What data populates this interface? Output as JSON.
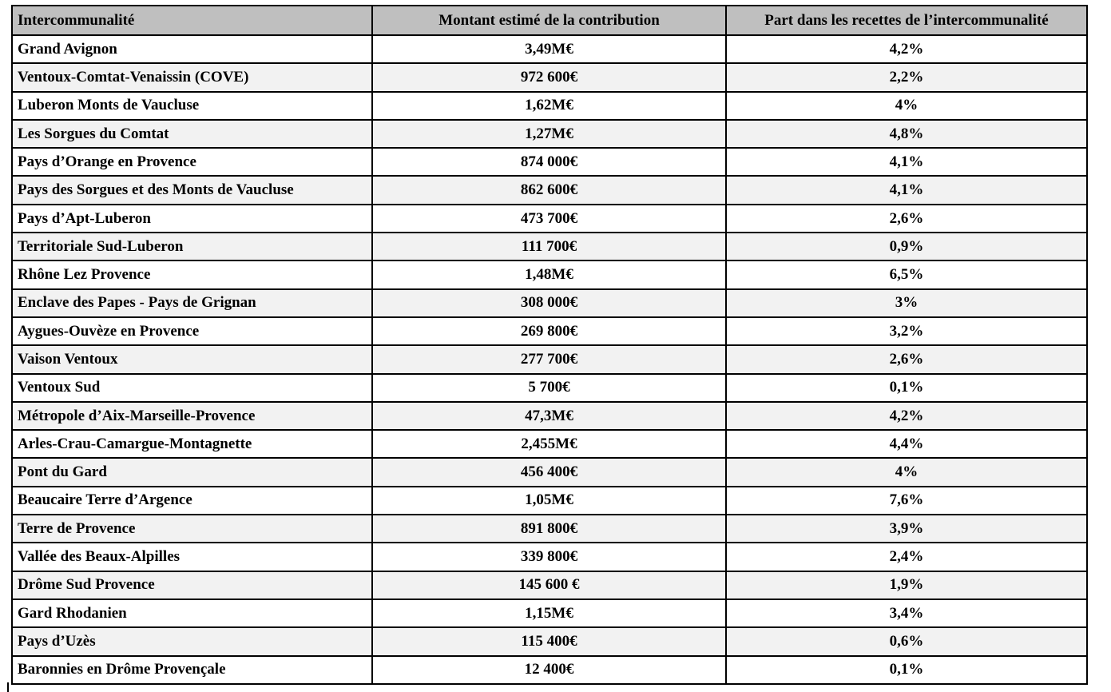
{
  "table": {
    "columns": [
      {
        "label": "Intercommunalité",
        "align": "left"
      },
      {
        "label": "Montant estimé de la contribution",
        "align": "center"
      },
      {
        "label": "Part dans les recettes de l’intercommunalité",
        "align": "center"
      }
    ],
    "rows": [
      {
        "intercommunalite": "Grand Avignon",
        "montant": "3,49M€",
        "part": "4,2%"
      },
      {
        "intercommunalite": "Ventoux-Comtat-Venaissin (COVE)",
        "montant": "972 600€",
        "part": "2,2%"
      },
      {
        "intercommunalite": "Luberon Monts de Vaucluse",
        "montant": "1,62M€",
        "part": "4%"
      },
      {
        "intercommunalite": "Les Sorgues du Comtat",
        "montant": "1,27M€",
        "part": "4,8%"
      },
      {
        "intercommunalite": "Pays d’Orange en Provence",
        "montant": "874 000€",
        "part": "4,1%"
      },
      {
        "intercommunalite": "Pays des Sorgues et des Monts de Vaucluse",
        "montant": "862 600€",
        "part": "4,1%"
      },
      {
        "intercommunalite": "Pays d’Apt-Luberon",
        "montant": "473 700€",
        "part": "2,6%"
      },
      {
        "intercommunalite": "Territoriale Sud-Luberon",
        "montant": "111 700€",
        "part": "0,9%"
      },
      {
        "intercommunalite": "Rhône Lez Provence",
        "montant": "1,48M€",
        "part": "6,5%"
      },
      {
        "intercommunalite": "Enclave des Papes - Pays de Grignan",
        "montant": "308 000€",
        "part": "3%"
      },
      {
        "intercommunalite": "Aygues-Ouvèze en Provence",
        "montant": "269 800€",
        "part": "3,2%"
      },
      {
        "intercommunalite": "Vaison Ventoux",
        "montant": "277 700€",
        "part": "2,6%"
      },
      {
        "intercommunalite": "Ventoux Sud",
        "montant": "5 700€",
        "part": "0,1%"
      },
      {
        "intercommunalite": "Métropole d’Aix-Marseille-Provence",
        "montant": "47,3M€",
        "part": "4,2%"
      },
      {
        "intercommunalite": "Arles-Crau-Camargue-Montagnette",
        "montant": "2,455M€",
        "part": "4,4%"
      },
      {
        "intercommunalite": "Pont du Gard",
        "montant": "456 400€",
        "part": "4%"
      },
      {
        "intercommunalite": "Beaucaire Terre d’Argence",
        "montant": "1,05M€",
        "part": "7,6%"
      },
      {
        "intercommunalite": "Terre de Provence",
        "montant": "891 800€",
        "part": "3,9%"
      },
      {
        "intercommunalite": "Vallée des Beaux-Alpilles",
        "montant": "339 800€",
        "part": "2,4%"
      },
      {
        "intercommunalite": "Drôme Sud Provence",
        "montant": "145 600 €",
        "part": "1,9%"
      },
      {
        "intercommunalite": "Gard Rhodanien",
        "montant": "1,15M€",
        "part": "3,4%"
      },
      {
        "intercommunalite": "Pays d’Uzès",
        "montant": "115 400€",
        "part": "0,6%"
      },
      {
        "intercommunalite": "Baronnies en Drôme Provençale",
        "montant": "12 400€",
        "part": "0,1%"
      }
    ],
    "colors": {
      "header_bg": "#bfbfbf",
      "row_alt_bg": "#f2f2f2",
      "row_bg": "#ffffff",
      "border": "#000000",
      "text": "#000000",
      "page_bg": "#ffffff"
    }
  }
}
